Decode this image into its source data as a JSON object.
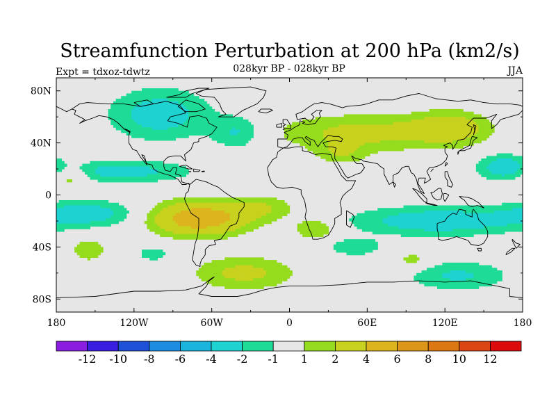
{
  "chart_data": {
    "type": "heatmap",
    "title": "Streamfunction Perturbation at 200 hPa (km2/s)",
    "subtitle": "028kyr BP - 028kyr BP",
    "left_label": "Expt = tdxoz-tdwtz",
    "season_label": "JJA",
    "xlabel": "",
    "ylabel": "",
    "xlim": [
      -180,
      180
    ],
    "ylim": [
      -90,
      90
    ],
    "x_ticks": [
      {
        "value": -180,
        "label": "180"
      },
      {
        "value": -120,
        "label": "120W"
      },
      {
        "value": -60,
        "label": "60W"
      },
      {
        "value": 0,
        "label": "0"
      },
      {
        "value": 60,
        "label": "60E"
      },
      {
        "value": 120,
        "label": "120E"
      },
      {
        "value": 180,
        "label": "180"
      }
    ],
    "y_ticks": [
      {
        "value": 80,
        "label": "80N"
      },
      {
        "value": 40,
        "label": "40N"
      },
      {
        "value": 0,
        "label": "0"
      },
      {
        "value": -40,
        "label": "40S"
      },
      {
        "value": -80,
        "label": "80S"
      }
    ],
    "colorbar": {
      "colors": [
        "#8a1de0",
        "#3a1ee0",
        "#1e50d8",
        "#1e8ce0",
        "#1ab4dc",
        "#1ed2d2",
        "#1edc96",
        "#e6e6e6",
        "#96dc1e",
        "#c8d21e",
        "#dcb41e",
        "#dc9619",
        "#dc7814",
        "#dc4614",
        "#dc0a0a"
      ],
      "labels": [
        "-12",
        "-10",
        "-8",
        "-6",
        "-4",
        "-2",
        "-1",
        "1",
        "2",
        "4",
        "6",
        "8",
        "10",
        "12"
      ]
    },
    "anomalies": [
      {
        "lon": -100,
        "lat": 62,
        "sx": 28,
        "sy": 14,
        "amp": -2.8
      },
      {
        "lon": -40,
        "lat": 48,
        "sx": 14,
        "sy": 9,
        "amp": -2.2
      },
      {
        "lon": -130,
        "lat": 18,
        "sx": 38,
        "sy": 6,
        "amp": -2.6
      },
      {
        "lon": -170,
        "lat": 14,
        "sx": 10,
        "sy": 6,
        "amp": 2.2
      },
      {
        "lon": 165,
        "lat": 22,
        "sx": 14,
        "sy": 7,
        "amp": -2.6
      },
      {
        "lon": 60,
        "lat": 48,
        "sx": 50,
        "sy": 10,
        "amp": 2.5
      },
      {
        "lon": 125,
        "lat": 52,
        "sx": 20,
        "sy": 9,
        "amp": 2.5
      },
      {
        "lon": 40,
        "lat": 32,
        "sx": 14,
        "sy": 6,
        "amp": 1.6
      },
      {
        "lon": -155,
        "lat": -14,
        "sx": 28,
        "sy": 7,
        "amp": -2.6
      },
      {
        "lon": -70,
        "lat": -18,
        "sx": 26,
        "sy": 9,
        "amp": 5.6
      },
      {
        "lon": -20,
        "lat": -10,
        "sx": 18,
        "sy": 7,
        "amp": 1.8
      },
      {
        "lon": 20,
        "lat": -26,
        "sx": 12,
        "sy": 6,
        "amp": 2.2
      },
      {
        "lon": 115,
        "lat": -20,
        "sx": 48,
        "sy": 8,
        "amp": -3.0
      },
      {
        "lon": 50,
        "lat": -40,
        "sx": 16,
        "sy": 5,
        "amp": -1.8
      },
      {
        "lon": -155,
        "lat": -42,
        "sx": 12,
        "sy": 8,
        "amp": 1.5
      },
      {
        "lon": -105,
        "lat": -45,
        "sx": 11,
        "sy": 5,
        "amp": -1.5
      },
      {
        "lon": 95,
        "lat": -50,
        "sx": 10,
        "sy": 5,
        "amp": 1.5
      },
      {
        "lon": -35,
        "lat": -60,
        "sx": 28,
        "sy": 9,
        "amp": 2.4
      },
      {
        "lon": 130,
        "lat": -62,
        "sx": 28,
        "sy": 8,
        "amp": -2.2
      }
    ]
  }
}
